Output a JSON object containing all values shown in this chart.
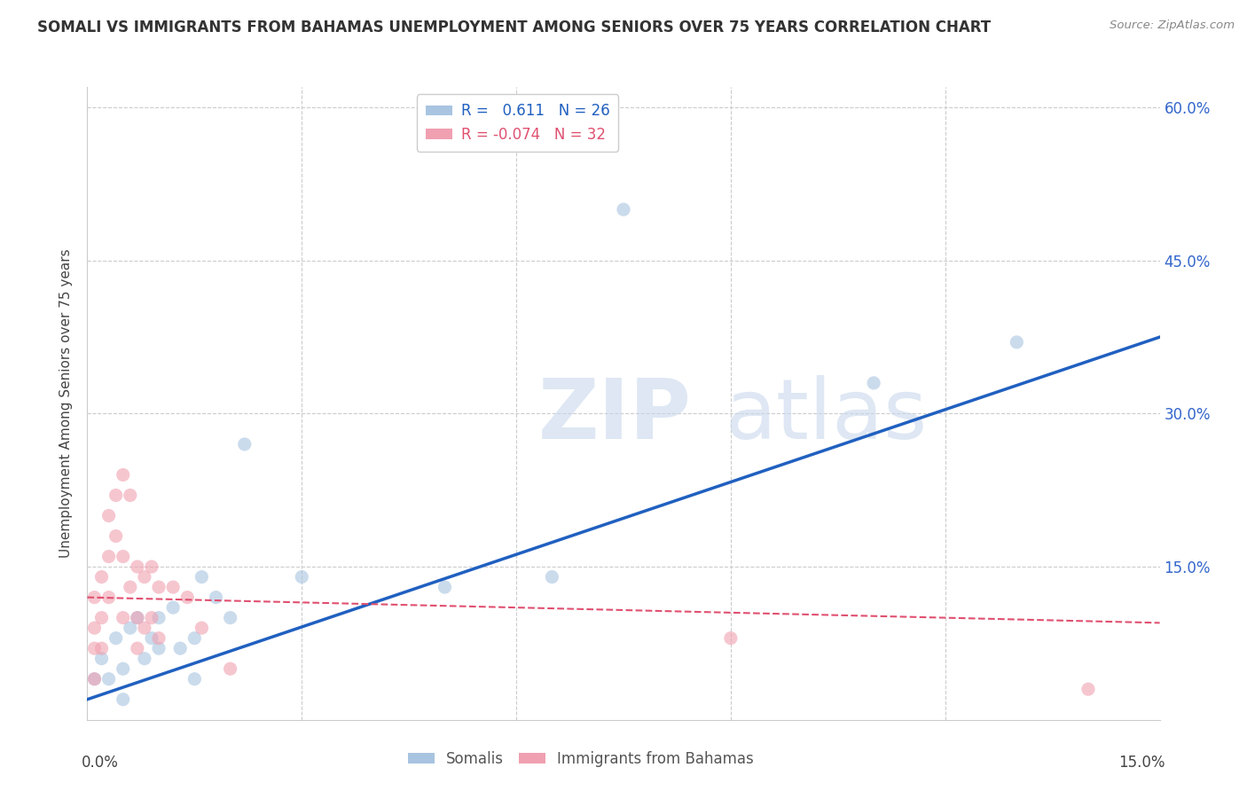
{
  "title": "SOMALI VS IMMIGRANTS FROM BAHAMAS UNEMPLOYMENT AMONG SENIORS OVER 75 YEARS CORRELATION CHART",
  "source": "Source: ZipAtlas.com",
  "ylabel": "Unemployment Among Seniors over 75 years",
  "yticks": [
    0.0,
    0.15,
    0.3,
    0.45,
    0.6
  ],
  "ytick_labels": [
    "",
    "15.0%",
    "30.0%",
    "45.0%",
    "60.0%"
  ],
  "xlim": [
    0.0,
    0.15
  ],
  "ylim": [
    0.0,
    0.62
  ],
  "legend_somali_R": "0.611",
  "legend_somali_N": "26",
  "legend_bahamas_R": "-0.074",
  "legend_bahamas_N": "32",
  "somali_color": "#a8c4e0",
  "bahamas_color": "#f0a0b0",
  "somali_line_color": "#2060c0",
  "bahamas_line_color": "#e05070",
  "somali_x": [
    0.001,
    0.002,
    0.003,
    0.004,
    0.005,
    0.005,
    0.006,
    0.007,
    0.008,
    0.009,
    0.01,
    0.01,
    0.012,
    0.013,
    0.015,
    0.015,
    0.016,
    0.018,
    0.02,
    0.022,
    0.03,
    0.05,
    0.065,
    0.075,
    0.11,
    0.13
  ],
  "somali_y": [
    0.04,
    0.06,
    0.04,
    0.08,
    0.05,
    0.02,
    0.09,
    0.1,
    0.06,
    0.08,
    0.07,
    0.1,
    0.11,
    0.07,
    0.08,
    0.04,
    0.14,
    0.12,
    0.1,
    0.27,
    0.14,
    0.13,
    0.14,
    0.5,
    0.33,
    0.37
  ],
  "bahamas_x": [
    0.001,
    0.001,
    0.001,
    0.001,
    0.002,
    0.002,
    0.002,
    0.003,
    0.003,
    0.003,
    0.004,
    0.004,
    0.005,
    0.005,
    0.005,
    0.006,
    0.006,
    0.007,
    0.007,
    0.007,
    0.008,
    0.008,
    0.009,
    0.009,
    0.01,
    0.01,
    0.012,
    0.014,
    0.016,
    0.02,
    0.09,
    0.14
  ],
  "bahamas_y": [
    0.12,
    0.09,
    0.07,
    0.04,
    0.14,
    0.1,
    0.07,
    0.2,
    0.16,
    0.12,
    0.22,
    0.18,
    0.24,
    0.16,
    0.1,
    0.22,
    0.13,
    0.15,
    0.1,
    0.07,
    0.14,
    0.09,
    0.15,
    0.1,
    0.13,
    0.08,
    0.13,
    0.12,
    0.09,
    0.05,
    0.08,
    0.03
  ],
  "somali_line_x": [
    0.0,
    0.15
  ],
  "somali_line_y": [
    0.02,
    0.375
  ],
  "bahamas_line_x": [
    0.0,
    0.15
  ],
  "bahamas_line_y": [
    0.12,
    0.095
  ],
  "xtick_positions": [
    0.0,
    0.03,
    0.06,
    0.09,
    0.12,
    0.15
  ],
  "marker_size": 120,
  "marker_alpha": 0.6
}
